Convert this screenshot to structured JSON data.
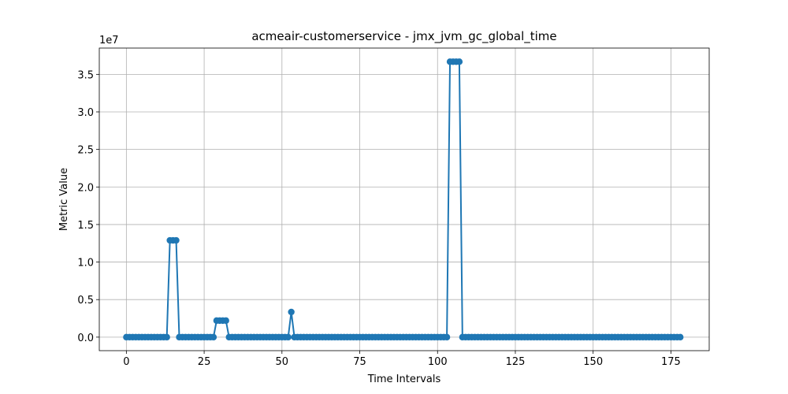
{
  "chart_data": {
    "type": "line",
    "title": "acmeair-customerservice - jmx_jvm_gc_global_time",
    "x_label": "Time Intervals",
    "y_label": "Metric Value",
    "y_offset_text": "1e7",
    "color": "#1f77b4",
    "grid": true,
    "x": [
      0,
      1,
      2,
      3,
      4,
      5,
      6,
      7,
      8,
      9,
      10,
      11,
      12,
      13,
      14,
      15,
      16,
      17,
      18,
      19,
      20,
      21,
      22,
      23,
      24,
      25,
      26,
      27,
      28,
      29,
      30,
      31,
      32,
      33,
      34,
      35,
      36,
      37,
      38,
      39,
      40,
      41,
      42,
      43,
      44,
      45,
      46,
      47,
      48,
      49,
      50,
      51,
      52,
      53,
      54,
      55,
      56,
      57,
      58,
      59,
      60,
      61,
      62,
      63,
      64,
      65,
      66,
      67,
      68,
      69,
      70,
      71,
      72,
      73,
      74,
      75,
      76,
      77,
      78,
      79,
      80,
      81,
      82,
      83,
      84,
      85,
      86,
      87,
      88,
      89,
      90,
      91,
      92,
      93,
      94,
      95,
      96,
      97,
      98,
      99,
      100,
      101,
      102,
      103,
      104,
      105,
      106,
      107,
      108,
      109,
      110,
      111,
      112,
      113,
      114,
      115,
      116,
      117,
      118,
      119,
      120,
      121,
      122,
      123,
      124,
      125,
      126,
      127,
      128,
      129,
      130,
      131,
      132,
      133,
      134,
      135,
      136,
      137,
      138,
      139,
      140,
      141,
      142,
      143,
      144,
      145,
      146,
      147,
      148,
      149,
      150,
      151,
      152,
      153,
      154,
      155,
      156,
      157,
      158,
      159,
      160,
      161,
      162,
      163,
      164,
      165,
      166,
      167,
      168,
      169,
      170,
      171,
      172,
      173,
      174,
      175,
      176,
      177,
      178
    ],
    "values": [
      0,
      0,
      0,
      0,
      0,
      0,
      0,
      0,
      0,
      0,
      0,
      0,
      0,
      0,
      12890000,
      12890000,
      12890000,
      0,
      0,
      0,
      0,
      0,
      0,
      0,
      0,
      0,
      0,
      0,
      0,
      2200000,
      2200000,
      2200000,
      2200000,
      0,
      0,
      0,
      0,
      0,
      0,
      0,
      0,
      0,
      0,
      0,
      0,
      0,
      0,
      0,
      0,
      0,
      0,
      0,
      0,
      3350000,
      0,
      0,
      0,
      0,
      0,
      0,
      0,
      0,
      0,
      0,
      0,
      0,
      0,
      0,
      0,
      0,
      0,
      0,
      0,
      0,
      0,
      0,
      0,
      0,
      0,
      0,
      0,
      0,
      0,
      0,
      0,
      0,
      0,
      0,
      0,
      0,
      0,
      0,
      0,
      0,
      0,
      0,
      0,
      0,
      0,
      0,
      0,
      0,
      0,
      0,
      36680000,
      36680000,
      36680000,
      36680000,
      0,
      0,
      0,
      0,
      0,
      0,
      0,
      0,
      0,
      0,
      0,
      0,
      0,
      0,
      0,
      0,
      0,
      0,
      0,
      0,
      0,
      0,
      0,
      0,
      0,
      0,
      0,
      0,
      0,
      0,
      0,
      0,
      0,
      0,
      0,
      0,
      0,
      0,
      0,
      0,
      0,
      0,
      0,
      0,
      0,
      0,
      0,
      0,
      0,
      0,
      0,
      0,
      0,
      0,
      0,
      0,
      0,
      0,
      0,
      0,
      0,
      0,
      0,
      0,
      0,
      0,
      0,
      0,
      0,
      0,
      0
    ],
    "xlim": [
      -8.7,
      187.3
    ],
    "ylim": [
      -1800000,
      38500000
    ],
    "xticks": [
      0,
      25,
      50,
      75,
      100,
      125,
      150,
      175
    ],
    "yticks": [
      {
        "value": 0,
        "label": "0.0"
      },
      {
        "value": 5000000,
        "label": "0.5"
      },
      {
        "value": 10000000,
        "label": "1.0"
      },
      {
        "value": 15000000,
        "label": "1.5"
      },
      {
        "value": 20000000,
        "label": "2.0"
      },
      {
        "value": 25000000,
        "label": "2.5"
      },
      {
        "value": 30000000,
        "label": "3.0"
      },
      {
        "value": 35000000,
        "label": "3.5"
      }
    ]
  }
}
